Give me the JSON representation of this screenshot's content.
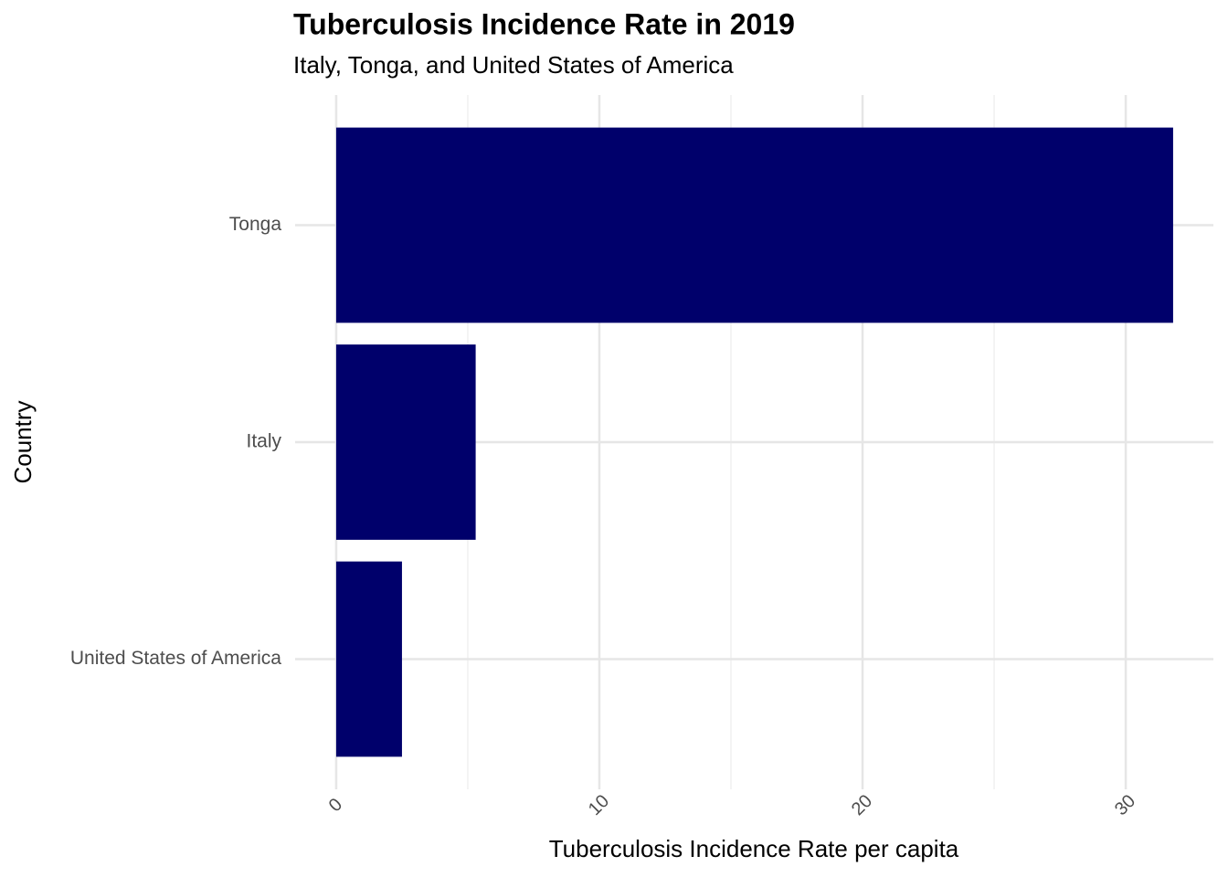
{
  "chart_data": {
    "type": "bar",
    "orientation": "horizontal",
    "title": "Tuberculosis Incidence Rate in 2019",
    "subtitle": "Italy, Tonga, and United States of America",
    "x_label": "Tuberculosis Incidence Rate per capita",
    "y_label": "Country",
    "categories": [
      "United States of America",
      "Italy",
      "Tonga"
    ],
    "values": [
      2.5,
      5.3,
      31.8
    ],
    "color": "#00006b",
    "xlim": [
      -1.56,
      33.33
    ],
    "xticks": [
      0,
      10,
      20,
      30
    ],
    "x_minor_ticks": [
      5,
      15,
      25
    ],
    "grid": true
  }
}
